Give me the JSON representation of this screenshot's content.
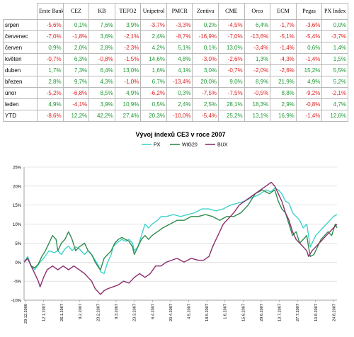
{
  "table": {
    "headers": [
      "Erste Bank",
      "CEZ",
      "KB",
      "TEFO2",
      "Unipetrol",
      "PMCR",
      "Zentiva",
      "CME",
      "Orco",
      "ECM",
      "Pegas",
      "PX Index"
    ],
    "rows": [
      {
        "label": "srpen",
        "values": [
          "-5,6%",
          "0,1%",
          "7,6%",
          "3,9%",
          "-3,7%",
          "-3,3%",
          "0,2%",
          "-4,5%",
          "6,4%",
          "-1,7%",
          "-3,6%",
          "0,0%"
        ]
      },
      {
        "label": "červenec",
        "values": [
          "-7,0%",
          "-1,8%",
          "3,6%",
          "-2,1%",
          "2,4%",
          "-8,7%",
          "-16,9%",
          "-7,0%",
          "-13,6%",
          "-5,1%",
          "-5,4%",
          "-3,7%"
        ]
      },
      {
        "label": "červen",
        "values": [
          "0,9%",
          "2,0%",
          "2,8%",
          "-2,3%",
          "4,2%",
          "5,1%",
          "0,1%",
          "13,0%",
          "-3,4%",
          "-1,4%",
          "0,6%",
          "1,4%"
        ]
      },
      {
        "label": "květen",
        "values": [
          "-0,7%",
          "6,3%",
          "-0,8%",
          "-1,5%",
          "14,6%",
          "4,8%",
          "-3,0%",
          "-2,6%",
          "1,3%",
          "-4,3%",
          "-1,4%",
          "1,5%"
        ]
      },
      {
        "label": "duben",
        "values": [
          "1,7%",
          "7,3%",
          "6,4%",
          "13,0%",
          "1,6%",
          "4,1%",
          "3,0%",
          "-0,7%",
          "-2,0%",
          "-2,6%",
          "15,2%",
          "5,5%"
        ]
      },
      {
        "label": "březen",
        "values": [
          "2,8%",
          "9,7%",
          "4,3%",
          "-1,0%",
          "6,7%",
          "-13,4%",
          "20,0%",
          "9,0%",
          "8,9%",
          "21,9%",
          "4,9%",
          "5,2%"
        ]
      },
      {
        "label": "únor",
        "values": [
          "-5,2%",
          "-6,8%",
          "8,5%",
          "4,9%",
          "-6,2%",
          "0,3%",
          "-7,5%",
          "-7,5%",
          "-0,5%",
          "8,8%",
          "-9,2%",
          "-2,1%"
        ]
      },
      {
        "label": "leden",
        "values": [
          "4,9%",
          "-4,1%",
          "3,9%",
          "10,9%",
          "0,5%",
          "2,4%",
          "2,5%",
          "28,1%",
          "18,3%",
          "2,9%",
          "-0,8%",
          "4,7%"
        ]
      },
      {
        "label": "YTD",
        "values": [
          "-8,6%",
          "12,2%",
          "42,2%",
          "27,4%",
          "20,3%",
          "-10,0%",
          "-5,4%",
          "25,2%",
          "13,1%",
          "16,9%",
          "-1,4%",
          "12,6%"
        ]
      }
    ]
  },
  "colors": {
    "negative": "#e02020",
    "positive": "#1c9a34"
  },
  "chart_data": {
    "type": "line",
    "title": "Vývoj indexů CE3 v roce 2007",
    "legend_position": "top",
    "grid": true,
    "ylim": [
      -10,
      25
    ],
    "yticks": [
      "25%",
      "20%",
      "15%",
      "10%",
      "5%",
      "0%",
      "-5%",
      "-10%"
    ],
    "y_tick_values": [
      25,
      20,
      15,
      10,
      5,
      0,
      -5,
      -10
    ],
    "x_tick_labels": [
      "29.12.2006",
      "12.1.2007",
      "26.1.2007",
      "9.2.2007",
      "23.2.2007",
      "9.3.2007",
      "23.3.2007",
      "6.4.2007",
      "20.4.2007",
      "4.5.2007",
      "18.5.2007",
      "1.6.2007",
      "15.6.2007",
      "29.6.2007",
      "13.7.2007",
      "27.7.2007",
      "10.8.2007",
      "24.8.2007"
    ],
    "series": [
      {
        "name": "PX",
        "color": "#3fd2cc",
        "points": [
          [
            0,
            0
          ],
          [
            2,
            1.5
          ],
          [
            4,
            -1
          ],
          [
            6,
            -2
          ],
          [
            9,
            0
          ],
          [
            11,
            1
          ],
          [
            14,
            3
          ],
          [
            17,
            2.5
          ],
          [
            19,
            3
          ],
          [
            21,
            2
          ],
          [
            23,
            3.5
          ],
          [
            25,
            4.2
          ],
          [
            27,
            3
          ],
          [
            29,
            4
          ],
          [
            31,
            3.5
          ],
          [
            34,
            2
          ],
          [
            36,
            3
          ],
          [
            38,
            2
          ],
          [
            40,
            0.5
          ],
          [
            42,
            -1
          ],
          [
            43,
            -2.5
          ],
          [
            45,
            -3
          ],
          [
            47,
            0
          ],
          [
            49,
            2
          ],
          [
            50,
            4
          ],
          [
            52,
            5
          ],
          [
            55,
            6
          ],
          [
            57,
            5.5
          ],
          [
            59,
            6
          ],
          [
            61,
            5
          ],
          [
            62,
            3
          ],
          [
            64,
            4
          ],
          [
            66,
            7
          ],
          [
            68,
            10
          ],
          [
            70,
            9
          ],
          [
            72,
            10
          ],
          [
            75,
            11
          ],
          [
            77,
            12
          ],
          [
            80,
            12
          ],
          [
            84,
            12.5
          ],
          [
            88,
            12
          ],
          [
            92,
            12.5
          ],
          [
            96,
            13
          ],
          [
            100,
            14
          ],
          [
            104,
            14
          ],
          [
            108,
            13.5
          ],
          [
            112,
            14
          ],
          [
            116,
            15
          ],
          [
            120,
            15.5
          ],
          [
            124,
            16
          ],
          [
            128,
            17
          ],
          [
            131,
            17.5
          ],
          [
            133,
            18
          ],
          [
            136,
            19
          ],
          [
            139,
            18.5
          ],
          [
            141,
            19.5
          ],
          [
            143,
            19
          ],
          [
            145,
            18
          ],
          [
            147,
            16
          ],
          [
            149,
            15.5
          ],
          [
            151,
            13
          ],
          [
            153,
            12
          ],
          [
            155,
            11
          ],
          [
            157,
            9
          ],
          [
            159,
            10
          ],
          [
            160,
            7
          ],
          [
            161,
            4
          ],
          [
            162,
            5
          ],
          [
            164,
            7
          ],
          [
            166,
            8
          ],
          [
            168,
            9
          ],
          [
            170,
            10
          ],
          [
            172,
            11
          ],
          [
            174,
            12
          ],
          [
            176,
            12.5
          ]
        ]
      },
      {
        "name": "WIG20",
        "color": "#2f8c4c",
        "points": [
          [
            0,
            0
          ],
          [
            2,
            1
          ],
          [
            4,
            -1
          ],
          [
            6,
            -1.5
          ],
          [
            8,
            -0.5
          ],
          [
            10,
            1.5
          ],
          [
            12,
            3
          ],
          [
            14,
            5
          ],
          [
            16,
            7
          ],
          [
            18,
            6
          ],
          [
            19,
            3
          ],
          [
            21,
            5
          ],
          [
            23,
            6
          ],
          [
            25,
            8
          ],
          [
            27,
            6
          ],
          [
            29,
            3
          ],
          [
            31,
            4
          ],
          [
            34,
            5
          ],
          [
            36,
            3
          ],
          [
            38,
            2
          ],
          [
            40,
            0
          ],
          [
            42,
            -1.5
          ],
          [
            43,
            -2
          ],
          [
            45,
            1
          ],
          [
            47,
            2
          ],
          [
            49,
            3
          ],
          [
            51,
            5
          ],
          [
            53,
            6
          ],
          [
            55,
            6.5
          ],
          [
            57,
            6
          ],
          [
            59,
            5.5
          ],
          [
            61,
            4
          ],
          [
            62,
            2
          ],
          [
            64,
            4
          ],
          [
            66,
            6
          ],
          [
            68,
            7
          ],
          [
            70,
            6
          ],
          [
            72,
            7
          ],
          [
            75,
            8
          ],
          [
            78,
            9
          ],
          [
            82,
            10
          ],
          [
            86,
            11
          ],
          [
            90,
            11
          ],
          [
            94,
            12
          ],
          [
            98,
            12
          ],
          [
            102,
            12.5
          ],
          [
            106,
            12
          ],
          [
            110,
            11
          ],
          [
            114,
            12
          ],
          [
            118,
            12
          ],
          [
            122,
            13
          ],
          [
            126,
            15
          ],
          [
            130,
            18
          ],
          [
            134,
            19
          ],
          [
            138,
            18
          ],
          [
            141,
            19
          ],
          [
            143,
            16
          ],
          [
            145,
            14
          ],
          [
            147,
            13
          ],
          [
            149,
            10
          ],
          [
            151,
            7
          ],
          [
            153,
            8
          ],
          [
            155,
            5
          ],
          [
            157,
            6
          ],
          [
            159,
            7
          ],
          [
            160,
            4
          ],
          [
            161,
            1.5
          ],
          [
            163,
            2
          ],
          [
            165,
            4
          ],
          [
            167,
            6
          ],
          [
            169,
            7
          ],
          [
            171,
            8
          ],
          [
            173,
            7
          ],
          [
            175,
            10
          ],
          [
            176,
            9
          ]
        ]
      },
      {
        "name": "BUX",
        "color": "#8c2d6c",
        "points": [
          [
            0,
            0
          ],
          [
            2,
            1
          ],
          [
            4,
            -1
          ],
          [
            6,
            -3
          ],
          [
            8,
            -5
          ],
          [
            9,
            -6.5
          ],
          [
            11,
            -4
          ],
          [
            13,
            -2
          ],
          [
            16,
            -1
          ],
          [
            19,
            -2
          ],
          [
            22,
            -1
          ],
          [
            25,
            -2
          ],
          [
            28,
            -1
          ],
          [
            31,
            -2
          ],
          [
            34,
            -3
          ],
          [
            36,
            -4
          ],
          [
            38,
            -5
          ],
          [
            40,
            -7
          ],
          [
            42,
            -8
          ],
          [
            43,
            -8.5
          ],
          [
            45,
            -7.5
          ],
          [
            47,
            -7
          ],
          [
            50,
            -6.5
          ],
          [
            53,
            -6
          ],
          [
            56,
            -5
          ],
          [
            59,
            -5.5
          ],
          [
            62,
            -4
          ],
          [
            65,
            -3
          ],
          [
            68,
            -4
          ],
          [
            71,
            -3
          ],
          [
            74,
            -1
          ],
          [
            77,
            -1
          ],
          [
            80,
            0
          ],
          [
            83,
            0.5
          ],
          [
            86,
            1
          ],
          [
            90,
            0
          ],
          [
            94,
            1
          ],
          [
            98,
            0.5
          ],
          [
            101,
            0.5
          ],
          [
            104,
            1.5
          ],
          [
            106,
            4
          ],
          [
            108,
            6
          ],
          [
            110,
            8
          ],
          [
            112,
            10
          ],
          [
            114,
            11
          ],
          [
            116,
            12
          ],
          [
            118,
            13
          ],
          [
            121,
            15
          ],
          [
            124,
            16
          ],
          [
            127,
            17
          ],
          [
            130,
            18
          ],
          [
            133,
            19
          ],
          [
            136,
            20
          ],
          [
            139,
            21
          ],
          [
            141,
            20
          ],
          [
            143,
            18
          ],
          [
            145,
            16
          ],
          [
            147,
            13
          ],
          [
            149,
            11
          ],
          [
            151,
            8
          ],
          [
            153,
            6
          ],
          [
            155,
            5
          ],
          [
            157,
            4
          ],
          [
            159,
            3
          ],
          [
            160,
            1.5
          ],
          [
            162,
            3
          ],
          [
            164,
            4
          ],
          [
            166,
            5
          ],
          [
            168,
            6
          ],
          [
            170,
            7
          ],
          [
            172,
            8
          ],
          [
            174,
            9
          ],
          [
            176,
            10
          ]
        ]
      }
    ]
  }
}
